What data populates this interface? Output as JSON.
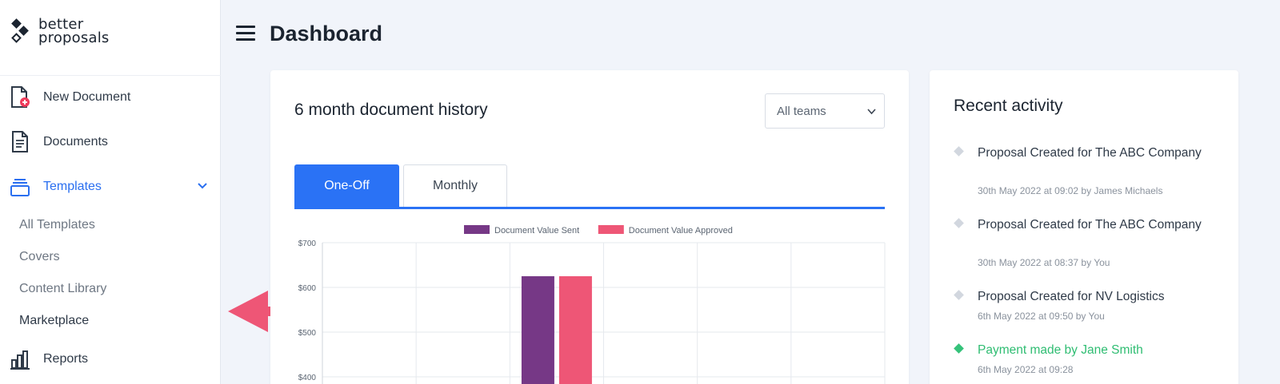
{
  "brand": {
    "line1": "better",
    "line2": "proposals"
  },
  "sidebar": {
    "items": [
      {
        "label": "New Document",
        "icon": "new-document-icon"
      },
      {
        "label": "Documents",
        "icon": "document-icon"
      },
      {
        "label": "Templates",
        "icon": "templates-icon",
        "expanded": true
      },
      {
        "label": "Reports",
        "icon": "bar-chart-icon"
      }
    ],
    "templates_sub": [
      "All Templates",
      "Covers",
      "Content Library",
      "Marketplace"
    ]
  },
  "header": {
    "title": "Dashboard"
  },
  "history": {
    "title": "6 month document history",
    "team_filter": "All teams",
    "tabs": [
      "One-Off",
      "Monthly"
    ],
    "active_tab": "One-Off"
  },
  "chart_data": {
    "type": "bar",
    "legend": [
      {
        "name": "Document Value Sent",
        "color": "#763886"
      },
      {
        "name": "Document Value Approved",
        "color": "#ee5676"
      }
    ],
    "y_ticks": [
      "$700",
      "$600",
      "$500",
      "$400"
    ],
    "ylim_visible": [
      400,
      700
    ],
    "series": [
      {
        "name": "Document Value Sent",
        "color": "#763886",
        "values": [
          0,
          0,
          625,
          0,
          0,
          0
        ]
      },
      {
        "name": "Document Value Approved",
        "color": "#ee5676",
        "values": [
          0,
          0,
          625,
          0,
          0,
          0
        ]
      }
    ],
    "grid": true
  },
  "activity": {
    "title": "Recent activity",
    "items": [
      {
        "text": "Proposal Created for The ABC Company",
        "meta": "30th May 2022 at 09:02 by James Michaels",
        "status": "default"
      },
      {
        "text": "Proposal Created for The ABC Company",
        "meta": "30th May 2022 at 08:37 by You",
        "status": "default"
      },
      {
        "text": "Proposal Created for NV Logistics",
        "meta": "6th May 2022 at 09:50 by You",
        "status": "default"
      },
      {
        "text": "Payment made by Jane Smith",
        "meta": "6th May 2022 at 09:28",
        "status": "success"
      }
    ]
  },
  "colors": {
    "accent": "#2a72f5",
    "annotation": "#ee5676",
    "success": "#2fbd72"
  }
}
